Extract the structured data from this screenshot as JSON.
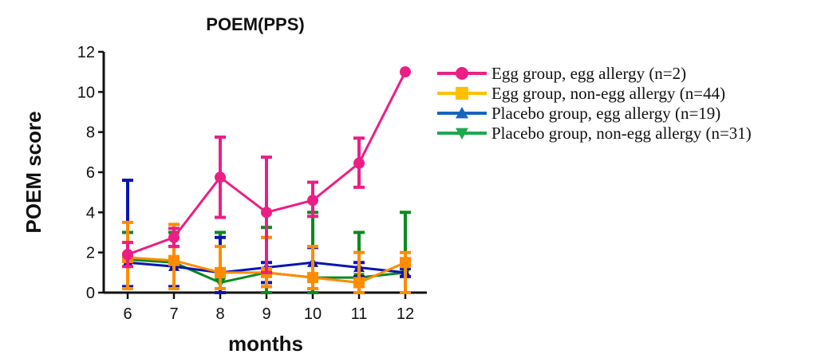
{
  "chart_data": {
    "type": "line",
    "title": "POEM(PPS)",
    "xlabel": "months",
    "ylabel": "POEM score",
    "x": [
      6,
      7,
      8,
      9,
      10,
      11,
      12
    ],
    "xticks": [
      "6",
      "7",
      "8",
      "9",
      "10",
      "11",
      "12"
    ],
    "ylim": [
      0,
      12
    ],
    "yticks": [
      "0",
      "2",
      "4",
      "6",
      "8",
      "10",
      "12"
    ],
    "ytick_values": [
      0,
      2,
      4,
      6,
      8,
      10,
      12
    ],
    "grid": false,
    "legend_position": "right",
    "error_bars": true,
    "series": [
      {
        "name": "Egg group, egg allergy (n=2)",
        "color": "#ec1e86",
        "marker": "circle",
        "values": [
          1.9,
          2.75,
          5.75,
          4.0,
          4.6,
          6.45,
          11.0
        ],
        "err_low": [
          1.3,
          2.3,
          3.75,
          1.0,
          3.8,
          5.25,
          null
        ],
        "err_high": [
          2.5,
          3.2,
          7.75,
          6.75,
          5.5,
          7.7,
          null
        ]
      },
      {
        "name": "Egg group, non-egg allergy (n=44)",
        "color": "#ff8c00",
        "legend_color": "#ffc000",
        "marker": "square",
        "values": [
          1.75,
          1.6,
          1.0,
          1.0,
          0.75,
          0.5,
          1.5
        ],
        "err_low": [
          0.2,
          0.2,
          0.2,
          0.3,
          0.2,
          0.0,
          0.0
        ],
        "err_high": [
          3.5,
          3.4,
          2.3,
          2.75,
          2.3,
          2.0,
          2.0
        ]
      },
      {
        "name": "Placebo group, egg allergy (n=19)",
        "color": "#0a14b4",
        "legend_color": "#1565c0",
        "marker": "triangle-up",
        "values": [
          1.5,
          1.3,
          1.0,
          1.25,
          1.5,
          1.25,
          1.0
        ],
        "err_low": [
          0.3,
          0.3,
          0.0,
          0.5,
          0.75,
          0.8,
          0.8
        ],
        "err_high": [
          5.6,
          2.3,
          2.75,
          1.5,
          2.25,
          1.5,
          1.2
        ]
      },
      {
        "name": "Placebo group, non-egg allergy (n=31)",
        "color": "#0a8a1e",
        "legend_color": "#1ea850",
        "marker": "triangle-down",
        "values": [
          1.65,
          1.5,
          0.5,
          1.0,
          0.75,
          0.75,
          1.0
        ],
        "err_low": [
          0.3,
          0.3,
          0.0,
          0.0,
          0.0,
          0.0,
          0.0
        ],
        "err_high": [
          3.0,
          3.0,
          3.0,
          3.25,
          4.0,
          3.0,
          4.0
        ]
      }
    ]
  }
}
